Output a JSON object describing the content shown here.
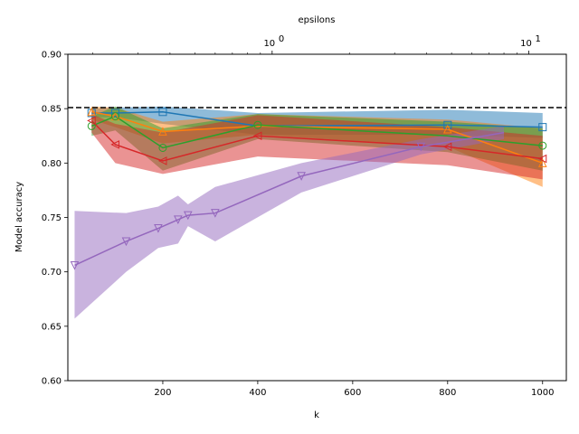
{
  "chart_data": {
    "type": "line",
    "xlabel": "k",
    "ylabel": "Model accuracy",
    "top_xlabel": "epsilons",
    "xlim": [
      0,
      1050
    ],
    "ylim": [
      0.6,
      0.9
    ],
    "x_ticks": [
      200,
      400,
      600,
      800,
      1000
    ],
    "y_ticks": [
      0.6,
      0.65,
      0.7,
      0.75,
      0.8,
      0.85,
      0.9
    ],
    "x_tick_labels": [
      "200",
      "400",
      "600",
      "800",
      "1000"
    ],
    "y_tick_labels": [
      "0.60",
      "0.65",
      "0.70",
      "0.75",
      "0.80",
      "0.85",
      "0.90"
    ],
    "top_axis": {
      "scale": "log",
      "xlim": [
        0.16,
        14
      ],
      "major_ticks": [
        1,
        10
      ],
      "major_tick_labels": [
        [
          "10",
          "0"
        ],
        [
          "10",
          "1"
        ]
      ],
      "minor_ticks": [
        0.2,
        0.3,
        0.4,
        0.5,
        0.6,
        0.7,
        0.8,
        0.9,
        2,
        3,
        4,
        5,
        6,
        7,
        8,
        9
      ]
    },
    "baseline": {
      "y": 0.851,
      "style": "dashed",
      "color": "#000000"
    },
    "grid": false,
    "series": [
      {
        "color": "#1f77b4",
        "marker": "square",
        "axis": "bottom",
        "x": [
          50,
          100,
          200,
          400,
          800,
          1000
        ],
        "y": [
          0.846,
          0.846,
          0.847,
          0.834,
          0.835,
          0.833
        ],
        "upper": [
          0.85,
          0.851,
          0.852,
          0.846,
          0.849,
          0.846
        ],
        "lower": [
          0.842,
          0.842,
          0.836,
          0.826,
          0.826,
          0.823
        ],
        "markers_at": [
          50,
          100,
          200,
          800,
          1000
        ]
      },
      {
        "color": "#ff7f0e",
        "marker": "triangle-up",
        "axis": "bottom",
        "x": [
          50,
          100,
          200,
          400,
          800,
          1000
        ],
        "y": [
          0.847,
          0.843,
          0.829,
          0.834,
          0.831,
          0.8
        ],
        "upper": [
          0.852,
          0.851,
          0.838,
          0.845,
          0.84,
          0.832
        ],
        "lower": [
          0.84,
          0.833,
          0.818,
          0.826,
          0.815,
          0.778
        ],
        "markers_at": [
          50,
          100,
          200,
          800,
          1000
        ]
      },
      {
        "color": "#2ca02c",
        "marker": "circle",
        "axis": "bottom",
        "x": [
          50,
          100,
          200,
          400,
          800,
          1000
        ],
        "y": [
          0.834,
          0.843,
          0.814,
          0.835,
          0.825,
          0.816
        ],
        "upper": [
          0.843,
          0.852,
          0.832,
          0.845,
          0.838,
          0.832
        ],
        "lower": [
          0.825,
          0.83,
          0.793,
          0.822,
          0.81,
          0.793
        ],
        "markers_at": [
          50,
          100,
          200,
          400,
          1000
        ]
      },
      {
        "color": "#d62728",
        "marker": "triangle-left",
        "axis": "bottom",
        "x": [
          50,
          100,
          200,
          400,
          800,
          1000
        ],
        "y": [
          0.839,
          0.817,
          0.802,
          0.825,
          0.815,
          0.804
        ],
        "upper": [
          0.845,
          0.836,
          0.828,
          0.844,
          0.833,
          0.825
        ],
        "lower": [
          0.828,
          0.8,
          0.79,
          0.806,
          0.798,
          0.785
        ],
        "markers_at": [
          50,
          100,
          200,
          400,
          800,
          1000
        ]
      },
      {
        "color": "#9467bd",
        "marker": "triangle-down",
        "axis": "top",
        "x": [
          0.17,
          0.27,
          0.36,
          0.43,
          0.47,
          0.6,
          1.3,
          3.8,
          8.0
        ],
        "y": [
          0.706,
          0.728,
          0.74,
          0.748,
          0.752,
          0.754,
          0.788,
          0.815,
          0.828
        ],
        "upper": [
          0.756,
          0.754,
          0.76,
          0.77,
          0.762,
          0.778,
          0.8,
          0.822,
          0.834
        ],
        "lower": [
          0.657,
          0.7,
          0.722,
          0.726,
          0.742,
          0.728,
          0.773,
          0.808,
          0.822
        ],
        "markers_at": [
          0.17,
          0.27,
          0.36,
          0.43,
          0.47,
          0.6,
          1.3,
          3.8
        ]
      }
    ]
  }
}
